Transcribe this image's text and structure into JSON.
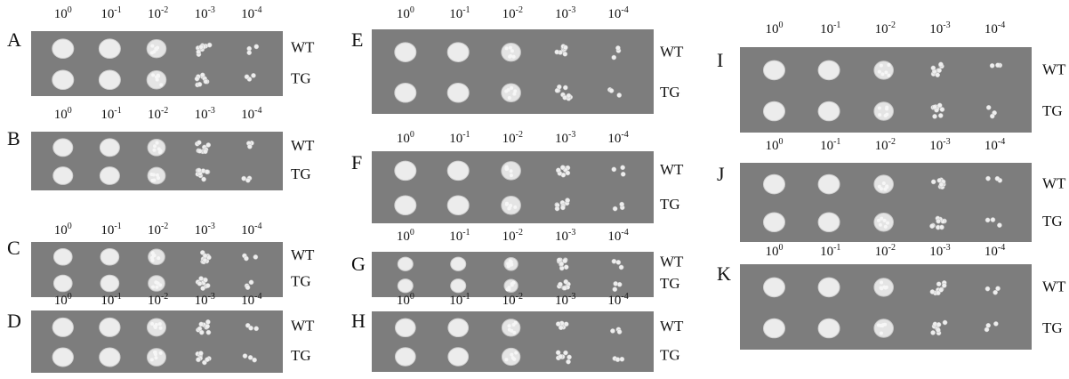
{
  "panels": [
    "A",
    "B",
    "C",
    "D",
    "E",
    "F",
    "G",
    "H",
    "I",
    "J",
    "K"
  ],
  "dilution_base": "10",
  "dilution_exponents": [
    "0",
    "-1",
    "-2",
    "-3",
    "-4"
  ],
  "strains": [
    "WT",
    "TG"
  ]
}
